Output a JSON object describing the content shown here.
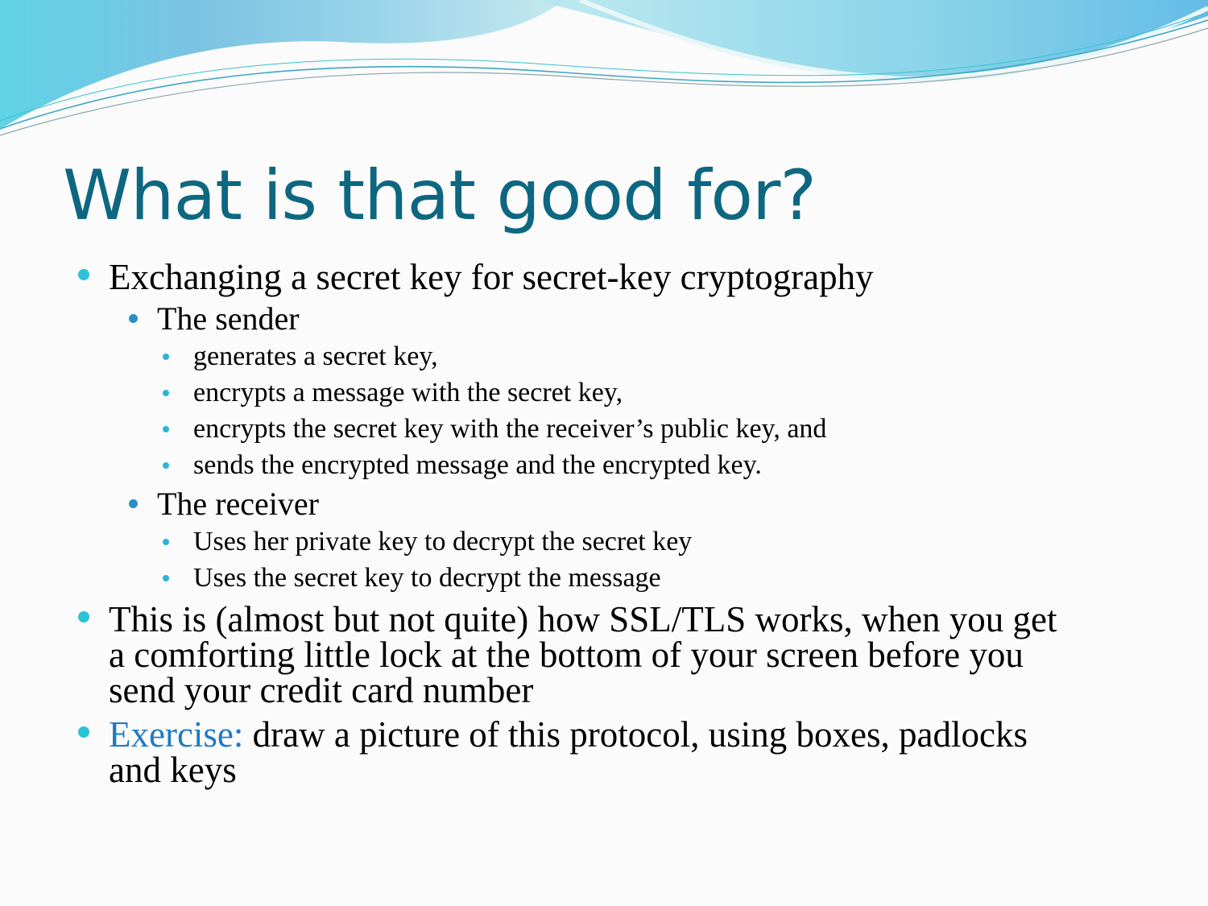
{
  "slide": {
    "title": "What is that good for?",
    "bullets": {
      "b1": "Exchanging a secret key for secret-key cryptography",
      "sender": "The sender",
      "sender_steps": [
        "generates a secret key,",
        "encrypts a message with the secret key,",
        "encrypts the secret key with the receiver’s public key, and",
        "sends the encrypted message and the encrypted key."
      ],
      "receiver": "The receiver",
      "receiver_steps": [
        "Uses her private key to decrypt the secret key",
        "Uses the secret key to decrypt the message"
      ],
      "b2_lines": [
        "This is (almost but not quite) how SSL/TLS works, when you get",
        "a comforting little lock at the bottom of your screen before you",
        "send your credit card number"
      ],
      "b3_label": "Exercise:",
      "b3_lines": [
        " draw a picture of this protocol, using boxes, padlocks",
        "and keys"
      ]
    }
  },
  "colors": {
    "title": "#0e6780",
    "accent": "#1f79c4",
    "bullet_l1": "#2cc3d7",
    "bullet_l2": "#2791c6"
  }
}
